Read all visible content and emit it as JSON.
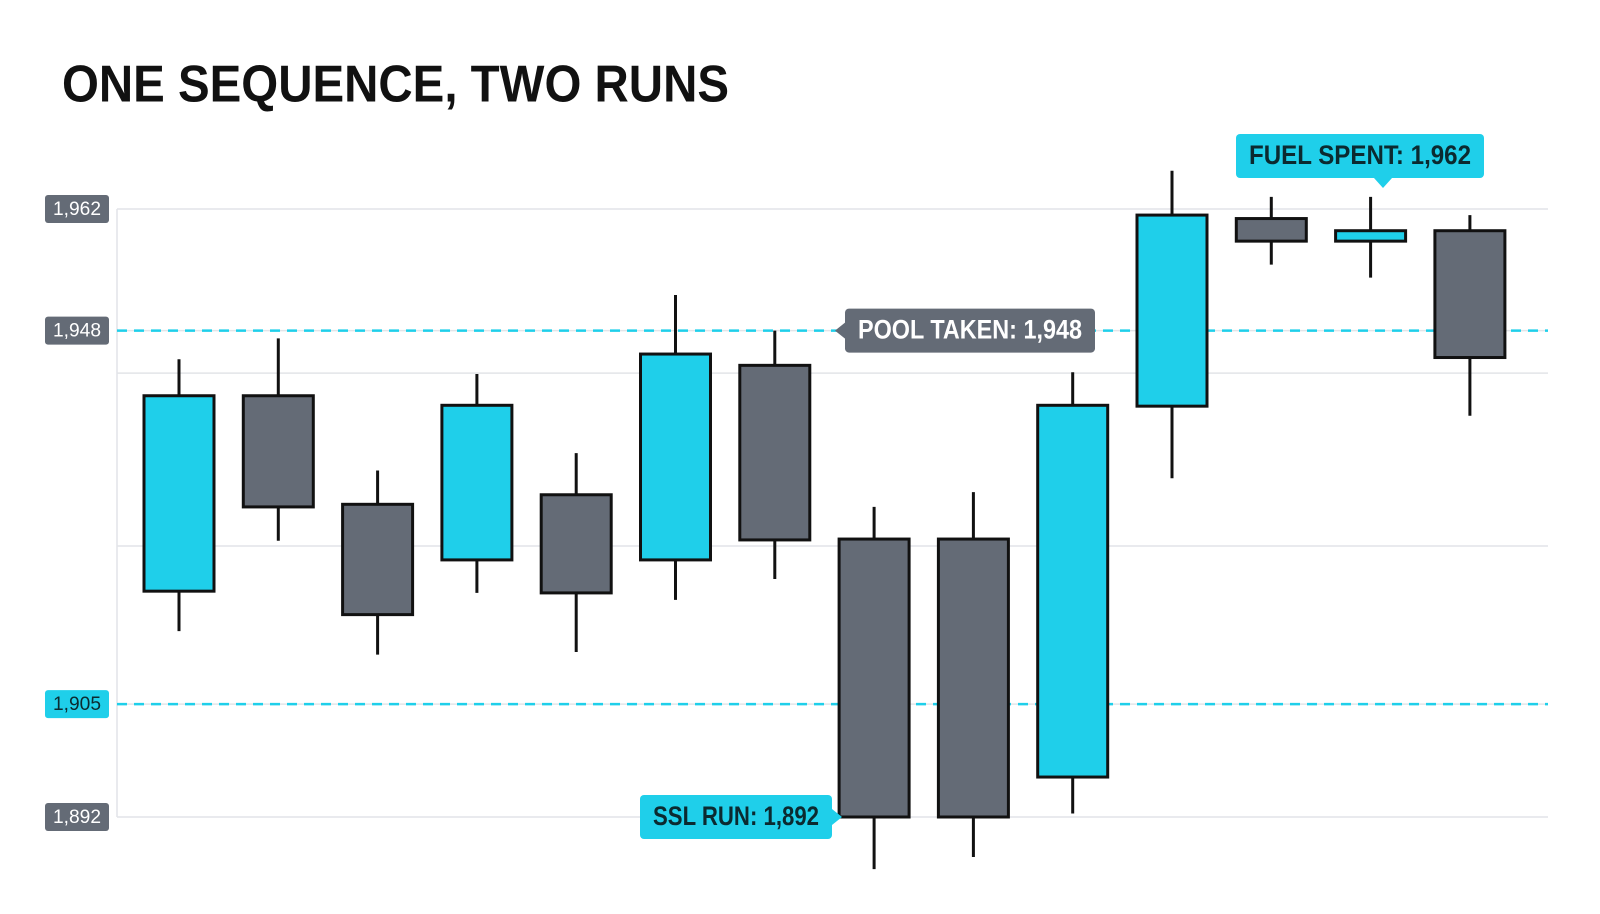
{
  "chart_data": {
    "type": "candlestick",
    "title": "ONE SEQUENCE, TWO RUNS",
    "open": [
      1918.0,
      1940.5,
      1928.0,
      1921.6,
      1929.1,
      1921.6,
      1944.0,
      1924.0,
      1924.0,
      1896.6,
      1939.3,
      1960.9,
      1958.3,
      1959.5
    ],
    "high": [
      1944.7,
      1947.1,
      1931.9,
      1943.0,
      1933.9,
      1952.1,
      1948.0,
      1927.7,
      1929.4,
      1943.2,
      1966.4,
      1963.4,
      1963.4,
      1961.3
    ],
    "low": [
      1913.4,
      1923.8,
      1910.7,
      1917.8,
      1911.0,
      1917.0,
      1919.4,
      1886.0,
      1887.4,
      1892.4,
      1931.0,
      1955.6,
      1954.1,
      1938.2
    ],
    "close": [
      1940.5,
      1927.7,
      1915.3,
      1939.4,
      1917.8,
      1945.3,
      1923.9,
      1892.0,
      1892.0,
      1939.4,
      1961.3,
      1958.3,
      1959.5,
      1944.9
    ],
    "up_color": "#1fcfea",
    "down_color": "#646b76",
    "ylim": [
      1892,
      1962
    ],
    "yticks": [
      {
        "value": 1962,
        "label": "1,962"
      },
      {
        "value": 1948,
        "label": "1,948"
      },
      {
        "value": 1905,
        "label": "1,905",
        "color": "#1fcfea"
      },
      {
        "value": 1892,
        "label": "1,892"
      }
    ],
    "grid_lines": [
      1943.1,
      1923.2
    ],
    "reference_lines": [
      {
        "value": 1948,
        "color": "#1fcfea"
      },
      {
        "value": 1905,
        "color": "#1fcfea"
      }
    ],
    "annotations": [
      {
        "text": "POOL TAKEN: 1,948",
        "value": 1948,
        "color": "#646b76"
      },
      {
        "text": "SSL RUN: 1,892",
        "value": 1892,
        "color": "#1fcfea"
      },
      {
        "text": "FUEL SPENT: 1,962",
        "value": 1962,
        "color": "#1fcfea"
      }
    ],
    "grid": true
  }
}
